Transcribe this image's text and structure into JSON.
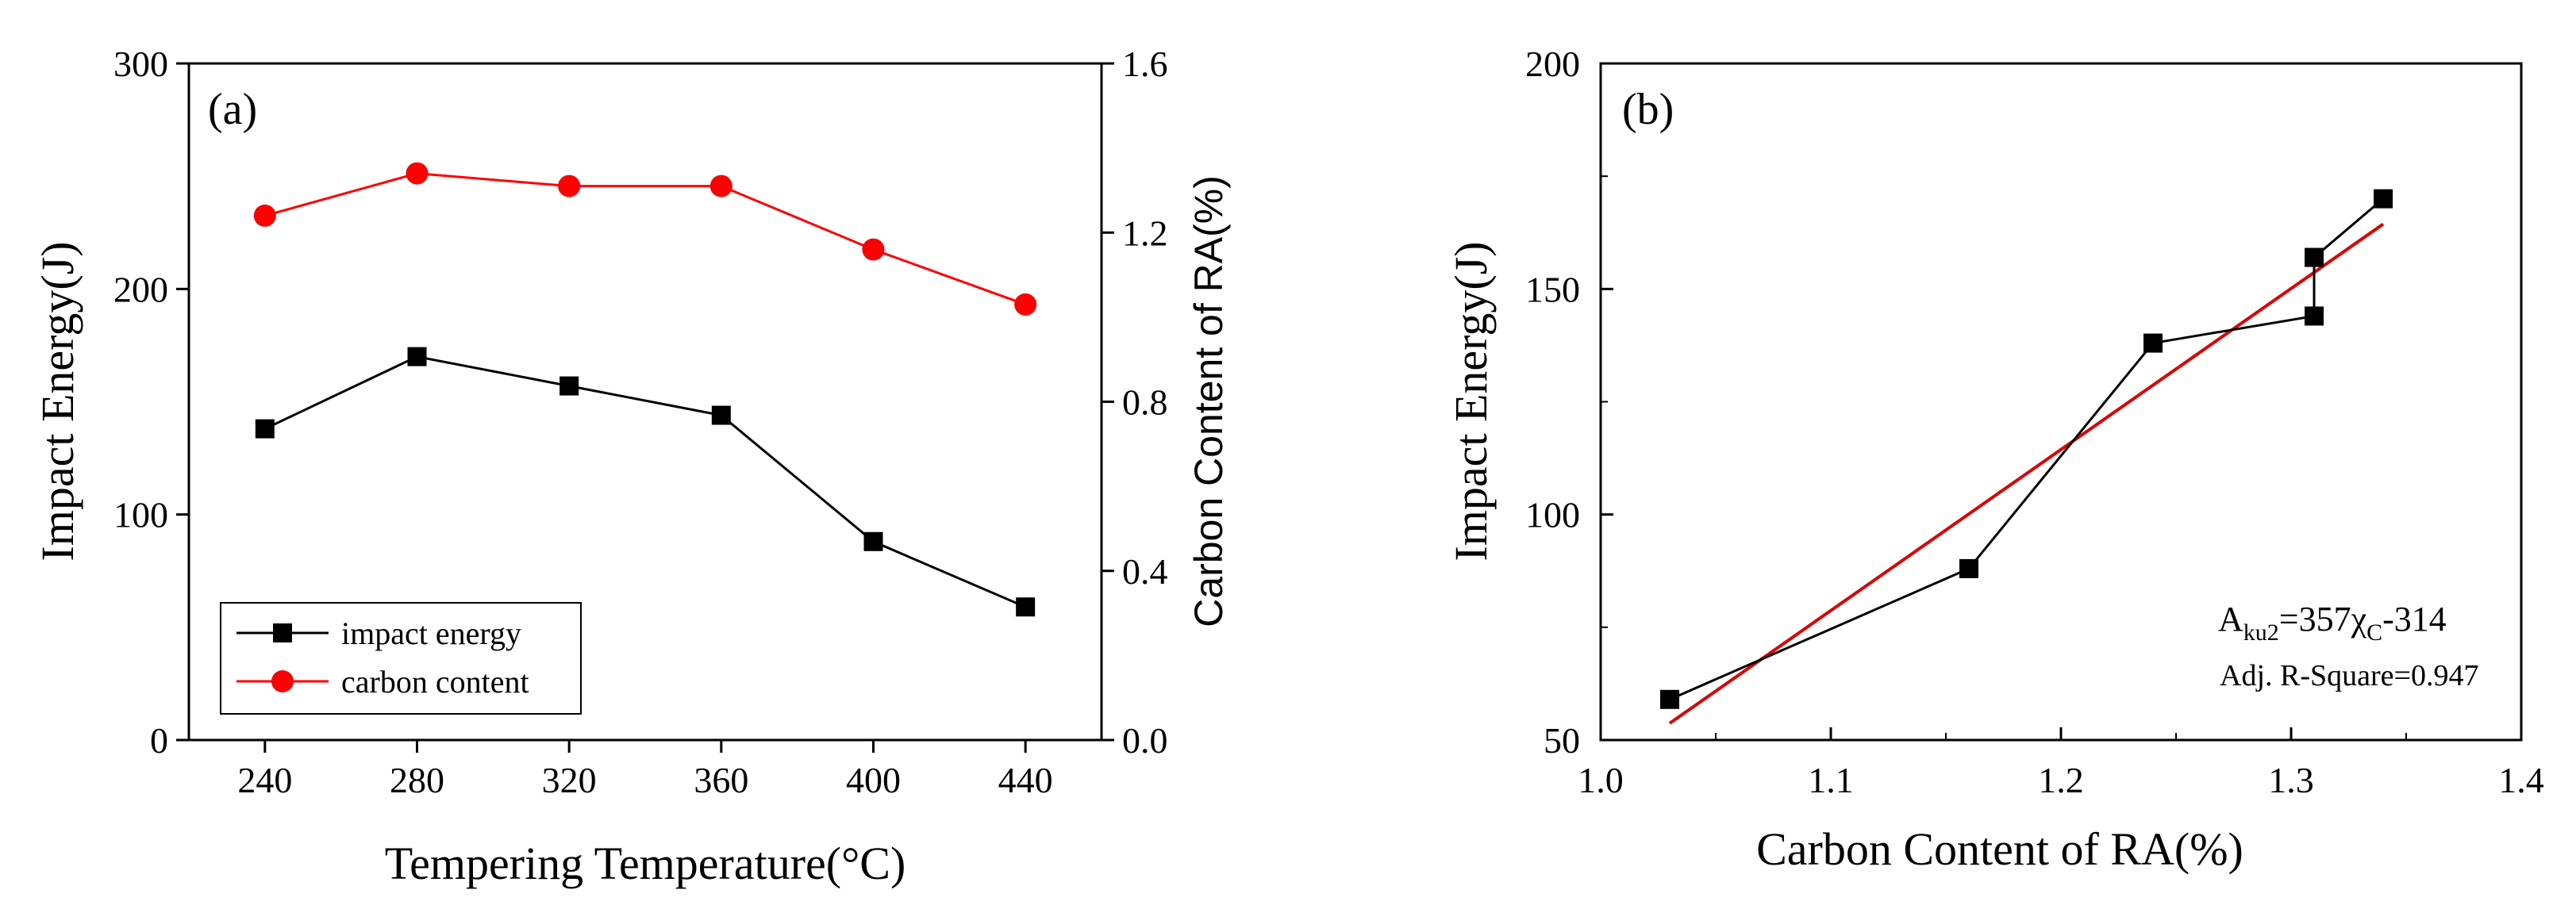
{
  "chart_data": [
    {
      "panel": "a",
      "type": "line",
      "panel_label": "(a)",
      "xlabel": "Tempering Temperature(°C)",
      "ylabel": "Impact Energy(J)",
      "y2label": "Carbon Content of RA(%)",
      "xlim": [
        220,
        460
      ],
      "ylim": [
        0,
        300
      ],
      "y2lim": [
        0,
        1.6
      ],
      "x": [
        240,
        280,
        320,
        360,
        400,
        440
      ],
      "xticks": [
        "240",
        "280",
        "320",
        "360",
        "400",
        "440"
      ],
      "yticks": [
        "0",
        "100",
        "200",
        "300"
      ],
      "y2ticks": [
        "0.0",
        "0.4",
        "0.8",
        "1.2",
        "1.6"
      ],
      "series": [
        {
          "name": "impact energy",
          "axis": "left",
          "marker": "square",
          "color": "#000000",
          "values": [
            138,
            170,
            157,
            144,
            88,
            59
          ]
        },
        {
          "name": "carbon content",
          "axis": "right",
          "marker": "circle",
          "color": "#ff0000",
          "values": [
            1.24,
            1.34,
            1.31,
            1.31,
            1.16,
            1.03
          ]
        }
      ],
      "legend_position": "bottom-left",
      "grid": false
    },
    {
      "panel": "b",
      "type": "scatter",
      "panel_label": "(b)",
      "xlabel": "Carbon Content of RA(%)",
      "ylabel": "Impact Energy(J)",
      "xlim": [
        1.0,
        1.4
      ],
      "ylim": [
        50,
        200
      ],
      "xticks": [
        "1.0",
        "1.1",
        "1.2",
        "1.3",
        "1.4"
      ],
      "yticks": [
        "50",
        "100",
        "150",
        "200"
      ],
      "points": {
        "x": [
          1.03,
          1.16,
          1.24,
          1.31,
          1.31,
          1.34
        ],
        "y": [
          59,
          88,
          138,
          144,
          157,
          170
        ],
        "color": "#000000"
      },
      "fit": {
        "equation_base": "A",
        "equation_sub": "ku2",
        "equation_mid": "=357χ",
        "equation_sub2": "C",
        "equation_tail": "-314",
        "r_square": "Adj. R-Square=0.947",
        "slope": 357,
        "intercept": -314,
        "x_range": [
          1.03,
          1.34
        ],
        "color": "#e00000"
      },
      "grid": false
    }
  ]
}
